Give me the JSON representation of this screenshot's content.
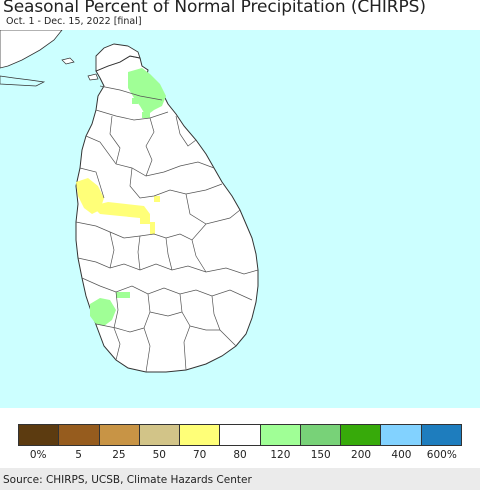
{
  "title": "Seasonal Percent of Normal Precipitation (CHIRPS)",
  "subtitle": "Oct. 1 - Dec. 15, 2022 [final]",
  "colors": {
    "ocean": "#ccffff",
    "land": "#ffffff",
    "border": "#555555"
  },
  "legend": {
    "swatches": [
      "#5c3b10",
      "#965c1e",
      "#c89445",
      "#d2c488",
      "#ffff78",
      "#ffffff",
      "#a0ff96",
      "#78d278",
      "#37aa0a",
      "#82d2ff",
      "#1e7dbe"
    ],
    "ticks": [
      "0%",
      "5",
      "25",
      "50",
      "70",
      "80",
      "120",
      "150",
      "200",
      "400",
      "600%"
    ]
  },
  "source": "Source: CHIRPS, UCSB, Climate Hazards Center"
}
